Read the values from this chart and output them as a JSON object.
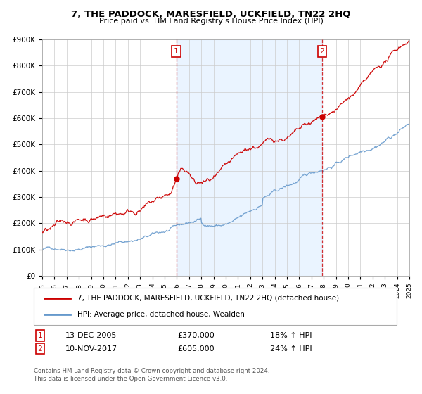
{
  "title": "7, THE PADDOCK, MARESFIELD, UCKFIELD, TN22 2HQ",
  "subtitle": "Price paid vs. HM Land Registry's House Price Index (HPI)",
  "legend_label1": "7, THE PADDOCK, MARESFIELD, UCKFIELD, TN22 2HQ (detached house)",
  "legend_label2": "HPI: Average price, detached house, Wealden",
  "annotation1_label": "1",
  "annotation1_date": "13-DEC-2005",
  "annotation1_price": "£370,000",
  "annotation1_hpi": "18% ↑ HPI",
  "annotation2_label": "2",
  "annotation2_date": "10-NOV-2017",
  "annotation2_price": "£605,000",
  "annotation2_hpi": "24% ↑ HPI",
  "footnote1": "Contains HM Land Registry data © Crown copyright and database right 2024.",
  "footnote2": "This data is licensed under the Open Government Licence v3.0.",
  "sale1_x": 2005.95,
  "sale1_y": 370000,
  "sale2_x": 2017.86,
  "sale2_y": 605000,
  "vline1_x": 2005.95,
  "vline2_x": 2017.86,
  "line1_color": "#cc0000",
  "line2_color": "#6699cc",
  "vline_color": "#cc0000",
  "fill_color": "#ddeeff",
  "background_color": "#ffffff",
  "grid_color": "#cccccc",
  "ylim": [
    0,
    900000
  ],
  "xlim_start": 1995,
  "xlim_end": 2025,
  "yticks": [
    0,
    100000,
    200000,
    300000,
    400000,
    500000,
    600000,
    700000,
    800000,
    900000
  ],
  "ytick_labels": [
    "£0",
    "£100K",
    "£200K",
    "£300K",
    "£400K",
    "£500K",
    "£600K",
    "£700K",
    "£800K",
    "£900K"
  ],
  "xticks": [
    1995,
    1996,
    1997,
    1998,
    1999,
    2000,
    2001,
    2002,
    2003,
    2004,
    2005,
    2006,
    2007,
    2008,
    2009,
    2010,
    2011,
    2012,
    2013,
    2014,
    2015,
    2016,
    2017,
    2018,
    2019,
    2020,
    2021,
    2022,
    2023,
    2024,
    2025
  ]
}
